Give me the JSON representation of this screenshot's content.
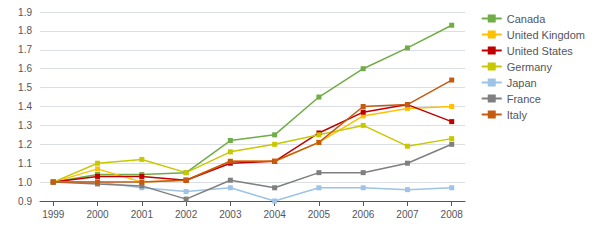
{
  "chart_data": {
    "type": "line",
    "x": [
      1999,
      2000,
      2001,
      2002,
      2003,
      2004,
      2005,
      2006,
      2007,
      2008
    ],
    "series": [
      {
        "name": "Canada",
        "color": "#70AD47",
        "marker": "square",
        "values": [
          1.0,
          1.04,
          1.04,
          1.05,
          1.22,
          1.25,
          1.45,
          1.6,
          1.71,
          1.83
        ]
      },
      {
        "name": "United Kingdom",
        "color": "#FFC000",
        "marker": "square",
        "values": [
          1.0,
          1.07,
          1.0,
          1.01,
          1.11,
          1.11,
          1.21,
          1.35,
          1.39,
          1.4
        ]
      },
      {
        "name": "United States",
        "color": "#C00000",
        "marker": "square",
        "values": [
          1.0,
          1.03,
          1.03,
          1.01,
          1.1,
          1.11,
          1.26,
          1.37,
          1.41,
          1.32
        ]
      },
      {
        "name": "Germany",
        "color": "#C8C800",
        "marker": "square",
        "values": [
          1.0,
          1.1,
          1.12,
          1.05,
          1.16,
          1.2,
          1.25,
          1.3,
          1.19,
          1.23
        ]
      },
      {
        "name": "Japan",
        "color": "#9DC3E6",
        "marker": "square",
        "values": [
          1.0,
          1.0,
          0.97,
          0.95,
          0.97,
          0.9,
          0.97,
          0.97,
          0.96,
          0.97
        ]
      },
      {
        "name": "France",
        "color": "#7F7F7F",
        "marker": "square",
        "values": [
          1.0,
          0.99,
          0.98,
          0.91,
          1.01,
          0.97,
          1.05,
          1.05,
          1.1,
          1.2
        ]
      },
      {
        "name": "Italy",
        "color": "#C55A11",
        "marker": "square",
        "values": [
          1.0,
          1.0,
          1.0,
          1.01,
          1.11,
          1.11,
          1.21,
          1.4,
          1.41,
          1.54
        ]
      }
    ],
    "xlim": [
      1998.7,
      2008.3
    ],
    "xticks": [
      1999,
      2000,
      2001,
      2002,
      2003,
      2004,
      2005,
      2006,
      2007,
      2008
    ],
    "ylim": [
      0.9,
      1.9
    ],
    "yticks": [
      0.9,
      {
        "value": 1.0,
        "label": "1.0"
      },
      1.1,
      1.2,
      1.3,
      1.4,
      1.5,
      1.6,
      1.7,
      1.8,
      1.9
    ],
    "grid": true,
    "legend": "right"
  }
}
